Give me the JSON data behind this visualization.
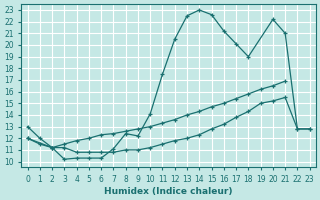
{
  "xlabel": "Humidex (Indice chaleur)",
  "bg_color": "#c5e8e5",
  "grid_color": "#ffffff",
  "line_color": "#1a7070",
  "xlim": [
    -0.5,
    23.5
  ],
  "ylim": [
    9.5,
    23.5
  ],
  "line1_x": [
    0,
    1,
    2,
    3,
    4,
    5,
    6,
    7,
    8,
    9,
    10,
    11,
    12,
    13,
    14,
    15,
    16,
    17,
    18,
    20,
    21,
    22,
    23
  ],
  "line1_y": [
    13.0,
    12.0,
    11.2,
    10.2,
    10.3,
    10.3,
    10.3,
    11.1,
    12.4,
    12.2,
    14.1,
    17.5,
    20.5,
    22.5,
    23.0,
    22.6,
    21.2,
    20.1,
    19.0,
    22.2,
    21.0,
    12.8,
    12.8
  ],
  "line2_x": [
    0,
    1,
    2,
    3,
    4,
    5,
    6,
    7,
    8,
    9,
    10,
    11,
    12,
    13,
    14,
    15,
    16,
    17,
    18,
    19,
    20,
    21,
    22,
    23
  ],
  "line2_y": [
    12.0,
    11.5,
    11.2,
    11.2,
    10.8,
    10.8,
    10.8,
    10.8,
    11.0,
    11.0,
    11.2,
    11.5,
    11.8,
    12.0,
    12.3,
    12.8,
    13.2,
    13.8,
    14.3,
    15.0,
    15.2,
    15.5,
    12.8,
    12.8
  ],
  "line3_x": [
    0,
    2,
    3,
    4,
    5,
    6,
    7,
    8,
    9,
    10,
    11,
    12,
    13,
    14,
    15,
    16,
    17,
    18,
    19,
    20,
    21
  ],
  "line3_y": [
    12.0,
    11.2,
    11.5,
    11.8,
    12.0,
    12.3,
    12.4,
    12.6,
    12.8,
    13.0,
    13.3,
    13.6,
    14.0,
    14.3,
    14.7,
    15.0,
    15.4,
    15.8,
    16.2,
    16.5,
    16.9
  ]
}
